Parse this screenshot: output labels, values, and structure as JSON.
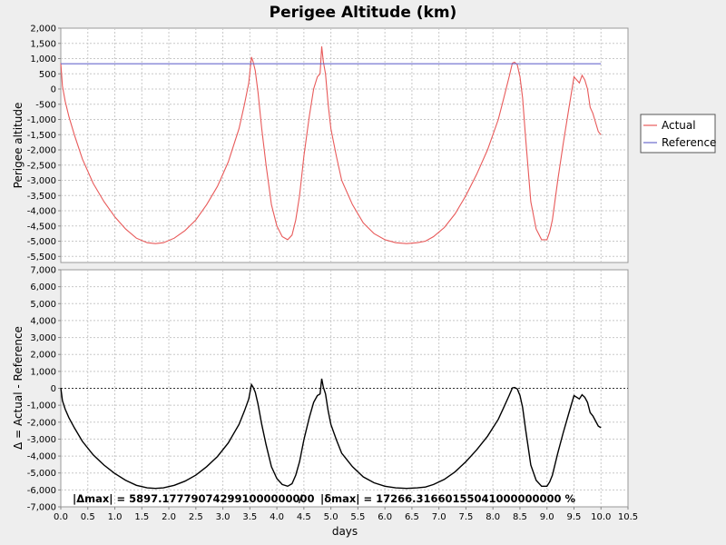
{
  "chart_data": {
    "type": "line",
    "title": "Perigee Altitude (km)",
    "xlabel": "days",
    "x_range": [
      0.0,
      10.5
    ],
    "x_ticks": [
      "0.0",
      "0.5",
      "1.0",
      "1.5",
      "2.0",
      "2.5",
      "3.0",
      "3.5",
      "4.0",
      "4.5",
      "5.0",
      "5.5",
      "6.0",
      "6.5",
      "7.0",
      "7.5",
      "8.0",
      "8.5",
      "9.0",
      "9.5",
      "10.0",
      "10.5"
    ],
    "grid": true,
    "legend_position": "right",
    "colors": {
      "actual": "#e85a5a",
      "reference": "#6a6acd",
      "delta": "#000000"
    },
    "top_panel": {
      "ylabel": "Perigee altitude",
      "ylim": [
        -5700,
        2000
      ],
      "y_ticks": [
        "2,000",
        "1,500",
        "1,000",
        "500",
        "0",
        "-500",
        "-1,000",
        "-1,500",
        "-2,000",
        "-2,500",
        "-3,000",
        "-3,500",
        "-4,000",
        "-4,500",
        "-5,000",
        "-5,500"
      ],
      "series": [
        {
          "name": "Actual",
          "x": [
            0.0,
            0.03,
            0.08,
            0.15,
            0.25,
            0.4,
            0.6,
            0.8,
            1.0,
            1.2,
            1.4,
            1.6,
            1.75,
            1.9,
            2.1,
            2.3,
            2.5,
            2.7,
            2.9,
            3.1,
            3.3,
            3.4,
            3.48,
            3.53,
            3.56,
            3.6,
            3.65,
            3.72,
            3.8,
            3.9,
            4.0,
            4.1,
            4.2,
            4.28,
            4.35,
            4.42,
            4.5,
            4.6,
            4.68,
            4.75,
            4.8,
            4.83,
            4.86,
            4.9,
            4.95,
            5.0,
            5.1,
            5.2,
            5.4,
            5.6,
            5.8,
            6.0,
            6.2,
            6.4,
            6.6,
            6.75,
            6.9,
            7.1,
            7.3,
            7.5,
            7.7,
            7.9,
            8.1,
            8.2,
            8.3,
            8.36,
            8.4,
            8.45,
            8.5,
            8.55,
            8.6,
            8.65,
            8.7,
            8.8,
            8.9,
            9.0,
            9.05,
            9.1,
            9.2,
            9.3,
            9.4,
            9.5,
            9.6,
            9.65,
            9.7,
            9.75,
            9.8,
            9.85,
            9.9,
            9.95,
            10.0
          ],
          "y": [
            850,
            100,
            -400,
            -900,
            -1500,
            -2300,
            -3100,
            -3700,
            -4200,
            -4600,
            -4900,
            -5050,
            -5080,
            -5050,
            -4900,
            -4650,
            -4300,
            -3800,
            -3200,
            -2400,
            -1300,
            -500,
            200,
            1050,
            900,
            600,
            -100,
            -1300,
            -2500,
            -3800,
            -4500,
            -4850,
            -4950,
            -4800,
            -4300,
            -3500,
            -2200,
            -900,
            0,
            400,
            500,
            1400,
            900,
            500,
            -500,
            -1300,
            -2200,
            -3000,
            -3800,
            -4400,
            -4750,
            -4950,
            -5050,
            -5080,
            -5050,
            -5000,
            -4850,
            -4550,
            -4100,
            -3500,
            -2800,
            -2000,
            -1000,
            -300,
            400,
            850,
            880,
            800,
            400,
            -300,
            -1500,
            -2600,
            -3700,
            -4600,
            -4950,
            -4950,
            -4700,
            -4300,
            -3000,
            -1800,
            -700,
            400,
            200,
            450,
            300,
            0,
            -600,
            -800,
            -1100,
            -1400,
            -1500
          ]
        },
        {
          "name": "Reference",
          "x": [
            0.0,
            10.0
          ],
          "y": [
            830,
            830
          ]
        }
      ]
    },
    "bottom_panel": {
      "ylabel": "Δ = Actual - Reference",
      "ylim": [
        -7000,
        7000
      ],
      "y_ticks": [
        "7,000",
        "6,000",
        "5,000",
        "4,000",
        "3,000",
        "2,000",
        "1,000",
        "0",
        "-1,000",
        "-2,000",
        "-3,000",
        "-4,000",
        "-5,000",
        "-6,000",
        "-7,000"
      ],
      "series": [
        {
          "name": "Δ",
          "x": [
            0.0,
            0.03,
            0.08,
            0.15,
            0.25,
            0.4,
            0.6,
            0.8,
            1.0,
            1.2,
            1.4,
            1.6,
            1.75,
            1.9,
            2.1,
            2.3,
            2.5,
            2.7,
            2.9,
            3.1,
            3.3,
            3.4,
            3.48,
            3.53,
            3.56,
            3.6,
            3.65,
            3.72,
            3.8,
            3.9,
            4.0,
            4.1,
            4.2,
            4.28,
            4.35,
            4.42,
            4.5,
            4.6,
            4.68,
            4.75,
            4.8,
            4.83,
            4.86,
            4.9,
            4.95,
            5.0,
            5.1,
            5.2,
            5.4,
            5.6,
            5.8,
            6.0,
            6.2,
            6.4,
            6.6,
            6.75,
            6.9,
            7.1,
            7.3,
            7.5,
            7.7,
            7.9,
            8.1,
            8.2,
            8.3,
            8.36,
            8.4,
            8.45,
            8.5,
            8.55,
            8.6,
            8.65,
            8.7,
            8.8,
            8.9,
            9.0,
            9.05,
            9.1,
            9.2,
            9.3,
            9.4,
            9.5,
            9.6,
            9.65,
            9.7,
            9.75,
            9.8,
            9.85,
            9.9,
            9.95,
            10.0
          ],
          "y": [
            20,
            -730,
            -1230,
            -1730,
            -2330,
            -3130,
            -3930,
            -4530,
            -5030,
            -5430,
            -5730,
            -5880,
            -5910,
            -5880,
            -5730,
            -5480,
            -5130,
            -4630,
            -4030,
            -3230,
            -2130,
            -1330,
            -630,
            220,
            70,
            -230,
            -930,
            -2130,
            -3330,
            -4630,
            -5330,
            -5680,
            -5780,
            -5630,
            -5130,
            -4330,
            -3030,
            -1730,
            -830,
            -430,
            -330,
            570,
            70,
            -330,
            -1330,
            -2130,
            -3030,
            -3830,
            -4630,
            -5230,
            -5580,
            -5780,
            -5880,
            -5910,
            -5880,
            -5830,
            -5680,
            -5380,
            -4930,
            -4330,
            -3630,
            -2830,
            -1830,
            -1130,
            -430,
            20,
            50,
            -30,
            -430,
            -1130,
            -2330,
            -3430,
            -4530,
            -5430,
            -5780,
            -5780,
            -5530,
            -5130,
            -3830,
            -2630,
            -1530,
            -430,
            -630,
            -380,
            -530,
            -830,
            -1430,
            -1630,
            -1930,
            -2230,
            -2330
          ]
        }
      ],
      "zero_line": 0
    },
    "annotation_delta": "|Δmax| = 5897.177790742991000000000",
    "annotation_sep": "/",
    "annotation_pct": "|δmax| = 17266.31660155041000000000 %"
  }
}
